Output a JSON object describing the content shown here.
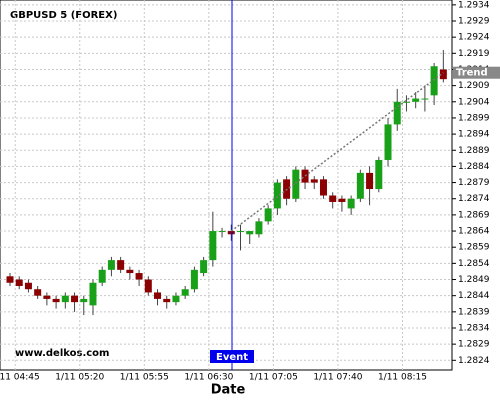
{
  "chart_data": {
    "type": "candlestick",
    "title": "GBPUSD 5 (FOREX)",
    "x_label": "Date",
    "watermark": "www.delkos.com",
    "categories": [
      null,
      "1/11 04:45",
      null,
      null,
      null,
      null,
      null,
      null,
      "1/11 05:20",
      null,
      null,
      null,
      null,
      null,
      null,
      "1/11 05:55",
      null,
      null,
      null,
      null,
      null,
      null,
      "1/11 06:30",
      null,
      null,
      null,
      null,
      null,
      null,
      "1/11 07:05",
      null,
      null,
      null,
      null,
      null,
      null,
      "1/11 07:40",
      null,
      null,
      null,
      null,
      null,
      null,
      "1/11 08:15",
      null,
      null,
      null,
      null
    ],
    "open": [
      1.285,
      1.2849,
      1.2848,
      1.2846,
      1.2844,
      1.2843,
      1.2842,
      1.2844,
      1.2842,
      1.2841,
      1.2848,
      1.2852,
      1.2855,
      1.2852,
      1.2851,
      1.2849,
      1.2845,
      1.2843,
      1.2842,
      1.2844,
      1.2846,
      1.2851,
      1.2855,
      1.2864,
      1.2864,
      1.2864,
      1.2863,
      1.2863,
      1.2867,
      1.2871,
      1.288,
      1.2874,
      1.2883,
      1.288,
      1.288,
      1.2875,
      1.2874,
      1.2871,
      1.2874,
      1.2882,
      1.2877,
      1.2886,
      1.2897,
      1.2904,
      1.2904,
      1.2905,
      1.2906,
      1.2914
    ],
    "high": [
      1.2851,
      1.285,
      1.2849,
      1.2847,
      1.2845,
      1.2844,
      1.2845,
      1.2845,
      1.2844,
      1.2849,
      1.2853,
      1.2856,
      1.2856,
      1.2853,
      1.2852,
      1.285,
      1.2846,
      1.2844,
      1.2845,
      1.2847,
      1.2853,
      1.2856,
      1.287,
      1.2865,
      1.2866,
      1.2866,
      1.2864,
      1.2868,
      1.2872,
      1.288,
      1.2881,
      1.2884,
      1.2884,
      1.2881,
      1.2881,
      1.2876,
      1.2875,
      1.2875,
      1.2883,
      1.2884,
      1.2887,
      1.2899,
      1.2908,
      1.2906,
      1.2907,
      1.2909,
      1.2916,
      1.292
    ],
    "low": [
      1.2847,
      1.2846,
      1.2845,
      1.2843,
      1.2841,
      1.284,
      1.284,
      1.2839,
      1.2838,
      1.2838,
      1.2847,
      1.285,
      1.2851,
      1.2849,
      1.2847,
      1.2844,
      1.2841,
      1.284,
      1.2841,
      1.2843,
      1.2845,
      1.285,
      1.2853,
      1.2862,
      1.2861,
      1.2858,
      1.286,
      1.2862,
      1.2866,
      1.2869,
      1.2872,
      1.2873,
      1.2877,
      1.2877,
      1.2874,
      1.2871,
      1.287,
      1.2869,
      1.2873,
      1.2872,
      1.2876,
      1.2884,
      1.2895,
      1.2901,
      1.2902,
      1.2901,
      1.2903,
      1.291
    ],
    "close": [
      1.2848,
      1.2847,
      1.2846,
      1.2844,
      1.2843,
      1.2842,
      1.2844,
      1.2842,
      1.2843,
      1.2848,
      1.2852,
      1.2855,
      1.2852,
      1.2851,
      1.2849,
      1.2845,
      1.2843,
      1.2842,
      1.2844,
      1.2846,
      1.2852,
      1.2855,
      1.2864,
      1.2864,
      1.2863,
      1.2864,
      1.2864,
      1.2867,
      1.2871,
      1.2879,
      1.2874,
      1.2883,
      1.2879,
      1.2879,
      1.2875,
      1.2873,
      1.2873,
      1.2874,
      1.2882,
      1.2877,
      1.2886,
      1.2897,
      1.2904,
      1.2904,
      1.2905,
      1.2905,
      1.2915,
      1.2911
    ],
    "up_color": "#19a019",
    "down_color": "#8b0000",
    "event": {
      "label": "Event",
      "color": "#0000ee"
    },
    "trend": {
      "label": "Trend",
      "values": [
        1.2864,
        1.2913
      ],
      "color": "#777777"
    },
    "ylim": [
      1.2821,
      1.29355
    ],
    "yticks": [
      1.2824,
      1.2829,
      1.2834,
      1.2839,
      1.2844,
      1.2849,
      1.2854,
      1.2859,
      1.2864,
      1.2869,
      1.2874,
      1.2879,
      1.2884,
      1.2889,
      1.2894,
      1.2899,
      1.2904,
      1.2909,
      1.2914,
      1.2919,
      1.2924,
      1.2929,
      1.2934
    ],
    "grid": true
  }
}
